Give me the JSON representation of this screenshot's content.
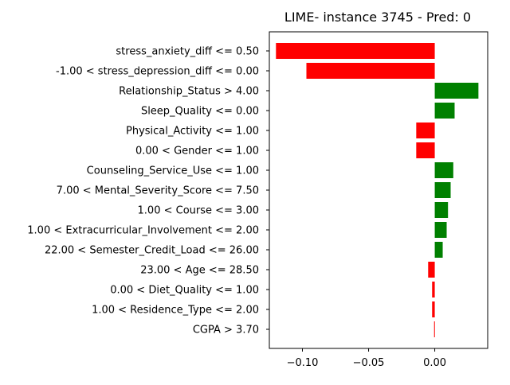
{
  "chart_data": {
    "type": "bar",
    "orientation": "horizontal",
    "title": "LIME- instance 3745 - Pred: 0",
    "xlabel": "",
    "ylabel": "",
    "xlim": [
      -0.125,
      0.04
    ],
    "xticks": [
      -0.1,
      -0.05,
      0.0
    ],
    "xtick_labels": [
      "−0.10",
      "−0.05",
      "0.00"
    ],
    "grid": false,
    "colors": {
      "positive": "#008000",
      "negative": "#ff0000"
    },
    "categories": [
      "stress_anxiety_diff <= 0.50",
      "-1.00 < stress_depression_diff <= 0.00",
      "Relationship_Status > 4.00",
      "Sleep_Quality <= 0.00",
      "Physical_Activity <= 1.00",
      "0.00 < Gender <= 1.00",
      "Counseling_Service_Use <= 1.00",
      "7.00 < Mental_Severity_Score <= 7.50",
      "1.00 < Course <= 3.00",
      "1.00 < Extracurricular_Involvement <= 2.00",
      "22.00 < Semester_Credit_Load <= 26.00",
      "23.00 < Age <= 28.50",
      "0.00 < Diet_Quality <= 1.00",
      "1.00 < Residence_Type <= 2.00",
      "CGPA > 3.70"
    ],
    "values": [
      -0.12,
      -0.097,
      0.033,
      0.015,
      -0.014,
      -0.014,
      0.014,
      0.012,
      0.01,
      0.009,
      0.006,
      -0.005,
      -0.002,
      -0.002,
      -0.0005
    ]
  }
}
